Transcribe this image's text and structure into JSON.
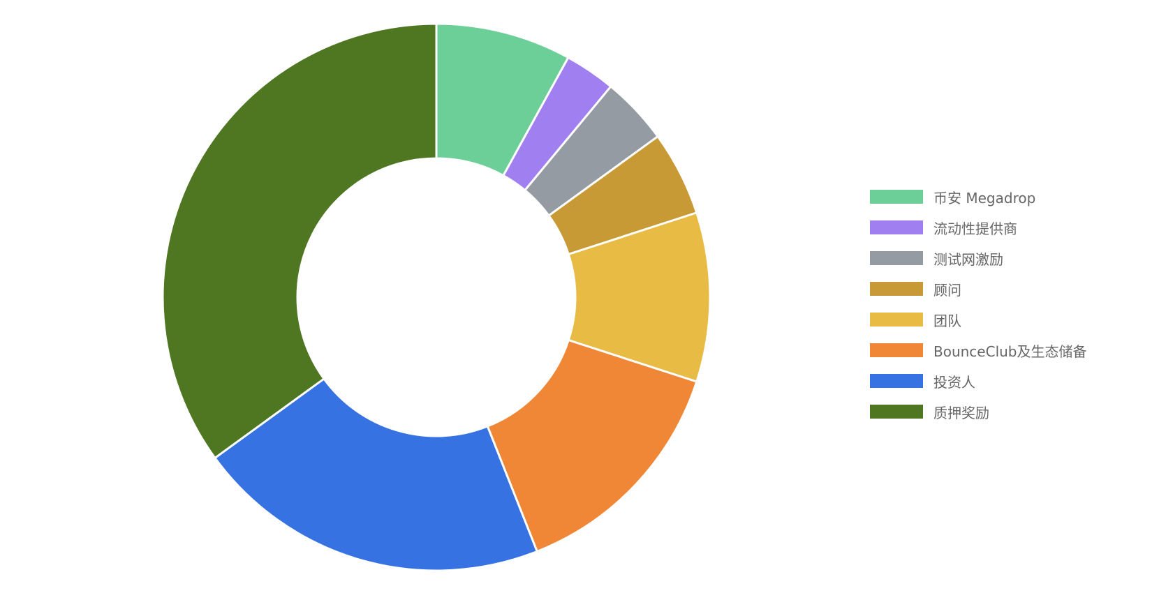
{
  "chart_data": {
    "type": "pie",
    "donut": true,
    "categories": [
      "币安 Megadrop",
      "流动性提供商",
      "测试网激励",
      "顾问",
      "团队",
      "BounceClub及生态储备",
      "投资人",
      "质押奖励"
    ],
    "values": [
      8,
      3,
      4,
      5,
      10,
      14,
      21,
      35
    ],
    "unit": "%",
    "colors": [
      "#6ccf97",
      "#a07ff0",
      "#949ba3",
      "#c79a35",
      "#e8bc44",
      "#ef8736",
      "#3672e2",
      "#4f7621"
    ],
    "legend_position": "right"
  }
}
